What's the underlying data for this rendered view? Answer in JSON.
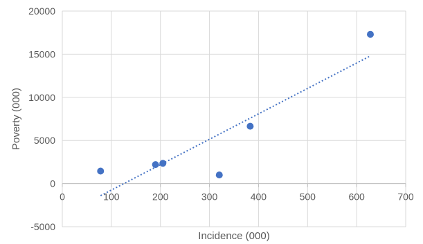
{
  "chart_data": {
    "type": "scatter",
    "title": "",
    "xlabel": "Incidence (000)",
    "ylabel": "Poverty (000)",
    "xlim": [
      0,
      700
    ],
    "ylim": [
      -5000,
      20000
    ],
    "x_ticks": [
      0,
      100,
      200,
      300,
      400,
      500,
      600,
      700
    ],
    "y_ticks": [
      -5000,
      0,
      5000,
      10000,
      15000,
      20000
    ],
    "x_tick_labels": [
      "0",
      "100",
      "200",
      "300",
      "400",
      "500",
      "600",
      "700"
    ],
    "y_tick_labels": [
      "-5000",
      "0",
      "5000",
      "10000",
      "15000",
      "20000"
    ],
    "grid": true,
    "series": [
      {
        "points": [
          {
            "x": 78,
            "y": 1450
          },
          {
            "x": 190,
            "y": 2200
          },
          {
            "x": 205,
            "y": 2350
          },
          {
            "x": 320,
            "y": 1000
          },
          {
            "x": 383,
            "y": 6650
          },
          {
            "x": 628,
            "y": 17300
          }
        ],
        "color": "#4472c4"
      }
    ],
    "trendline": {
      "type": "linear",
      "x_range": [
        78,
        628
      ],
      "y_at_start": -1400,
      "y_at_end": 14800,
      "color": "#4472c4",
      "style": "dotted"
    }
  }
}
